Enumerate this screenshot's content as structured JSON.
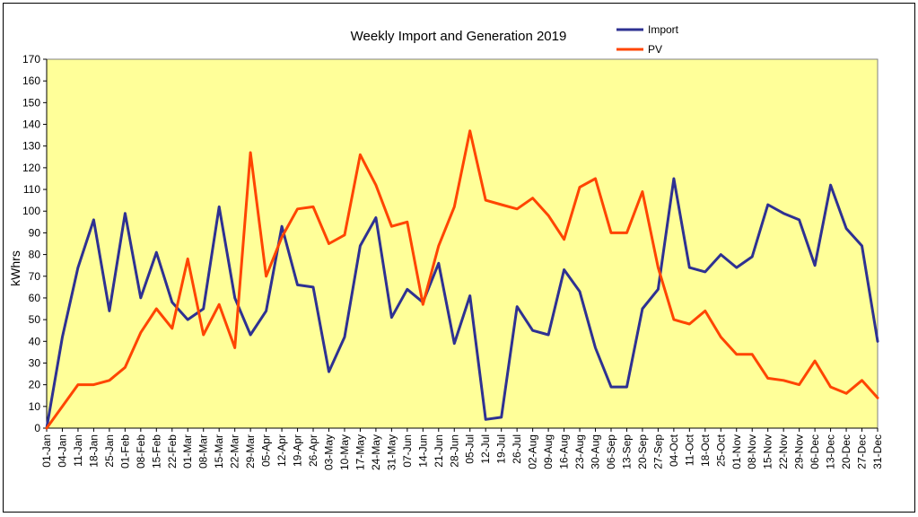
{
  "chart_data": {
    "type": "line",
    "title": "Weekly Import and Generation 2019",
    "xlabel": "",
    "ylabel": "kWhrs",
    "ylim": [
      0,
      170
    ],
    "yticks": [
      0,
      10,
      20,
      30,
      40,
      50,
      60,
      70,
      80,
      90,
      100,
      110,
      120,
      130,
      140,
      150,
      160,
      170
    ],
    "grid": false,
    "legend_position": "top-right",
    "plot_background": "#ffff99",
    "categories": [
      "01-Jan",
      "04-Jan",
      "11-Jan",
      "18-Jan",
      "25-Jan",
      "01-Feb",
      "08-Feb",
      "15-Feb",
      "22-Feb",
      "01-Mar",
      "08-Mar",
      "15-Mar",
      "22-Mar",
      "29-Mar",
      "05-Apr",
      "12-Apr",
      "19-Apr",
      "26-Apr",
      "03-May",
      "10-May",
      "17-May",
      "24-May",
      "31-May",
      "07-Jun",
      "14-Jun",
      "21-Jun",
      "28-Jun",
      "05-Jul",
      "12-Jul",
      "19-Jul",
      "26-Jul",
      "02-Aug",
      "09-Aug",
      "16-Aug",
      "23-Aug",
      "30-Aug",
      "06-Sep",
      "13-Sep",
      "20-Sep",
      "27-Sep",
      "04-Oct",
      "11-Oct",
      "18-Oct",
      "25-Oct",
      "01-Nov",
      "08-Nov",
      "15-Nov",
      "22-Nov",
      "29-Nov",
      "06-Dec",
      "13-Dec",
      "20-Dec",
      "27-Dec",
      "31-Dec"
    ],
    "series": [
      {
        "name": "Import",
        "color": "#2e3192",
        "values": [
          0,
          42,
          74,
          96,
          54,
          99,
          60,
          81,
          58,
          50,
          55,
          102,
          60,
          43,
          54,
          93,
          66,
          65,
          26,
          42,
          84,
          97,
          51,
          64,
          58,
          76,
          39,
          61,
          4,
          5,
          56,
          45,
          43,
          73,
          63,
          37,
          19,
          19,
          55,
          64,
          115,
          74,
          72,
          80,
          74,
          79,
          103,
          99,
          96,
          75,
          112,
          92,
          84,
          40
        ]
      },
      {
        "name": "PV",
        "color": "#ff4500",
        "values": [
          0,
          10,
          20,
          20,
          22,
          28,
          44,
          55,
          46,
          78,
          43,
          57,
          37,
          127,
          70,
          88,
          101,
          102,
          85,
          89,
          126,
          112,
          93,
          95,
          57,
          84,
          102,
          137,
          105,
          103,
          101,
          106,
          98,
          87,
          111,
          115,
          90,
          90,
          109,
          74,
          50,
          48,
          54,
          42,
          34,
          34,
          23,
          22,
          20,
          31,
          19,
          16,
          22,
          14
        ]
      }
    ]
  }
}
